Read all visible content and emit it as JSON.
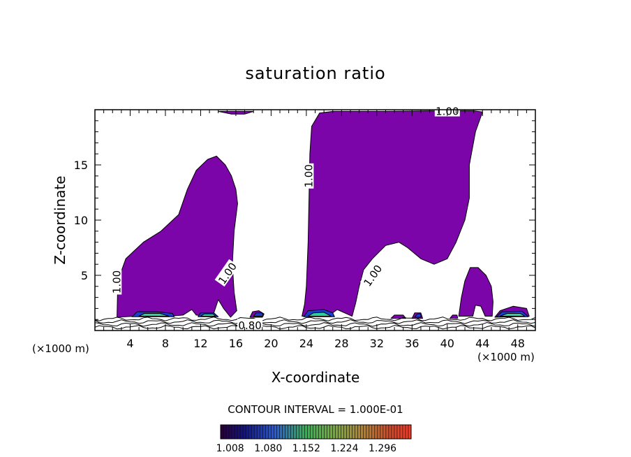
{
  "chart_data": {
    "type": "contour",
    "title": "saturation ratio",
    "xlabel": "X-coordinate",
    "ylabel": "Z-coordinate",
    "x_unit_left": "(×1000 m)",
    "x_unit_right": "(×1000 m)",
    "xlim": [
      0,
      50
    ],
    "ylim": [
      0,
      20
    ],
    "x_ticks": [
      4,
      8,
      12,
      16,
      20,
      24,
      28,
      32,
      36,
      40,
      44,
      48
    ],
    "y_ticks": [
      5,
      10,
      15
    ],
    "contour_interval_text": "CONTOUR INTERVAL = 1.000E-01",
    "colorbar_ticks": [
      "1.008",
      "1.080",
      "1.152",
      "1.224",
      "1.296"
    ],
    "colorbar_range": [
      0.99,
      1.35
    ],
    "contour_labels": [
      {
        "text": "1.00",
        "x": 40.0,
        "z": 19.9,
        "rotate": 0
      },
      {
        "text": "1.00",
        "x": 24.2,
        "z": 14.0,
        "rotate": -90
      },
      {
        "text": "1.00",
        "x": 2.4,
        "z": 4.4,
        "rotate": -90
      },
      {
        "text": "1.00",
        "x": 15.0,
        "z": 5.2,
        "rotate": -55
      },
      {
        "text": "1.00",
        "x": 31.5,
        "z": 5.0,
        "rotate": -55
      },
      {
        "text": "0.80",
        "x": 17.6,
        "z": 0.5,
        "rotate": 0
      }
    ],
    "regions": [
      {
        "name": "sat-region-left",
        "color": "#7b05a8",
        "pts": [
          [
            2.5,
            1.2
          ],
          [
            2.6,
            4.5
          ],
          [
            3.5,
            6.5
          ],
          [
            5.5,
            8.0
          ],
          [
            7.5,
            9.0
          ],
          [
            9.5,
            10.5
          ],
          [
            10.5,
            12.8
          ],
          [
            11.5,
            14.5
          ],
          [
            12.8,
            15.5
          ],
          [
            13.8,
            15.8
          ],
          [
            14.8,
            15.0
          ],
          [
            15.5,
            14.0
          ],
          [
            16.0,
            12.8
          ],
          [
            16.2,
            11.5
          ],
          [
            15.8,
            9.0
          ],
          [
            15.6,
            6.0
          ],
          [
            15.8,
            3.5
          ],
          [
            16.1,
            1.8
          ],
          [
            15.4,
            1.2
          ],
          [
            14.6,
            2.0
          ],
          [
            14.0,
            2.8
          ],
          [
            13.5,
            1.6
          ],
          [
            12.5,
            1.3
          ],
          [
            11.5,
            1.4
          ],
          [
            11.0,
            1.9
          ],
          [
            10.0,
            1.4
          ],
          [
            8.5,
            1.3
          ],
          [
            6.5,
            1.3
          ],
          [
            4.5,
            1.3
          ]
        ]
      },
      {
        "name": "sat-region-center",
        "color": "#7b05a8",
        "pts": [
          [
            23.5,
            1.3
          ],
          [
            23.8,
            2.4
          ],
          [
            24.0,
            4.0
          ],
          [
            24.2,
            8.0
          ],
          [
            24.3,
            12.0
          ],
          [
            24.4,
            16.0
          ],
          [
            24.6,
            18.5
          ],
          [
            25.5,
            19.7
          ],
          [
            27.0,
            19.85
          ],
          [
            33.0,
            19.85
          ],
          [
            38.0,
            19.9
          ],
          [
            43.0,
            19.9
          ],
          [
            44.0,
            19.8
          ],
          [
            43.2,
            18.0
          ],
          [
            42.5,
            15.0
          ],
          [
            42.5,
            12.0
          ],
          [
            42.0,
            10.0
          ],
          [
            41.0,
            8.0
          ],
          [
            40.0,
            6.5
          ],
          [
            38.5,
            6.0
          ],
          [
            37.0,
            6.5
          ],
          [
            35.5,
            7.5
          ],
          [
            34.5,
            8.0
          ],
          [
            33.0,
            7.7
          ],
          [
            31.5,
            6.5
          ],
          [
            30.5,
            5.5
          ],
          [
            30.0,
            4.0
          ],
          [
            29.6,
            2.5
          ],
          [
            29.2,
            1.3
          ],
          [
            27.5,
            1.9
          ],
          [
            26.5,
            1.3
          ],
          [
            25.0,
            1.3
          ]
        ]
      },
      {
        "name": "sat-region-right",
        "color": "#7b05a8",
        "pts": [
          [
            41.3,
            1.3
          ],
          [
            41.6,
            3.0
          ],
          [
            42.0,
            4.5
          ],
          [
            42.6,
            5.7
          ],
          [
            43.5,
            5.7
          ],
          [
            44.4,
            5.0
          ],
          [
            45.0,
            4.0
          ],
          [
            45.2,
            2.6
          ],
          [
            45.1,
            1.3
          ],
          [
            44.3,
            1.3
          ],
          [
            43.8,
            2.2
          ],
          [
            43.2,
            2.3
          ],
          [
            42.9,
            1.3
          ]
        ]
      },
      {
        "name": "sat-region-top",
        "color": "#7b05a8",
        "pts": [
          [
            14.0,
            19.85
          ],
          [
            15.5,
            19.6
          ],
          [
            17.0,
            19.6
          ],
          [
            18.0,
            19.85
          ]
        ]
      },
      {
        "name": "sat-patch-a",
        "color": "#7b05a8",
        "pts": [
          [
            17.6,
            1.2
          ],
          [
            17.9,
            1.7
          ],
          [
            18.6,
            1.8
          ],
          [
            19.2,
            1.5
          ],
          [
            19.0,
            1.2
          ]
        ]
      },
      {
        "name": "sat-patch-b",
        "color": "#7b05a8",
        "pts": [
          [
            33.6,
            1.1
          ],
          [
            34.0,
            1.4
          ],
          [
            35.0,
            1.4
          ],
          [
            35.3,
            1.1
          ]
        ]
      },
      {
        "name": "sat-patch-c",
        "color": "#7b05a8",
        "pts": [
          [
            36.0,
            1.1
          ],
          [
            36.3,
            1.6
          ],
          [
            37.0,
            1.6
          ],
          [
            37.2,
            1.1
          ]
        ]
      },
      {
        "name": "sat-patch-d",
        "color": "#7b05a8",
        "pts": [
          [
            40.3,
            1.1
          ],
          [
            40.6,
            1.4
          ],
          [
            41.1,
            1.4
          ],
          [
            41.2,
            1.1
          ]
        ]
      },
      {
        "name": "sat-patch-e",
        "color": "#7b05a8",
        "pts": [
          [
            45.4,
            1.2
          ],
          [
            46.0,
            1.8
          ],
          [
            47.5,
            2.2
          ],
          [
            49.0,
            2.0
          ],
          [
            49.3,
            1.3
          ]
        ]
      },
      {
        "name": "sat-high-1",
        "color": "#1a3fd0",
        "pts": [
          [
            4.2,
            1.25
          ],
          [
            4.8,
            1.7
          ],
          [
            7.0,
            1.7
          ],
          [
            8.8,
            1.55
          ],
          [
            9.0,
            1.25
          ]
        ]
      },
      {
        "name": "sat-high-2",
        "color": "#2fcfa0",
        "pts": [
          [
            5.0,
            1.3
          ],
          [
            5.6,
            1.55
          ],
          [
            7.4,
            1.55
          ],
          [
            8.4,
            1.3
          ]
        ]
      },
      {
        "name": "sat-high-3",
        "color": "#1a3fd0",
        "pts": [
          [
            11.7,
            1.25
          ],
          [
            12.0,
            1.6
          ],
          [
            13.5,
            1.6
          ],
          [
            14.0,
            1.25
          ]
        ]
      },
      {
        "name": "sat-high-4",
        "color": "#2fcfa0",
        "pts": [
          [
            12.0,
            1.3
          ],
          [
            12.4,
            1.5
          ],
          [
            13.4,
            1.5
          ],
          [
            13.7,
            1.3
          ]
        ]
      },
      {
        "name": "sat-high-5",
        "color": "#1a3fd0",
        "pts": [
          [
            23.7,
            1.25
          ],
          [
            24.2,
            1.8
          ],
          [
            26.0,
            1.9
          ],
          [
            27.0,
            1.6
          ],
          [
            27.2,
            1.25
          ]
        ]
      },
      {
        "name": "sat-high-6",
        "color": "#2fcfa0",
        "pts": [
          [
            24.2,
            1.3
          ],
          [
            24.8,
            1.6
          ],
          [
            26.0,
            1.65
          ],
          [
            26.8,
            1.3
          ]
        ]
      },
      {
        "name": "sat-high-7",
        "color": "#1a3fd0",
        "pts": [
          [
            45.6,
            1.25
          ],
          [
            46.2,
            1.7
          ],
          [
            48.5,
            1.75
          ],
          [
            49.2,
            1.25
          ]
        ]
      },
      {
        "name": "sat-high-8",
        "color": "#2fcfa0",
        "pts": [
          [
            46.0,
            1.3
          ],
          [
            46.8,
            1.55
          ],
          [
            48.3,
            1.55
          ],
          [
            48.8,
            1.3
          ]
        ]
      },
      {
        "name": "sat-high-9",
        "color": "#1a3fd0",
        "pts": [
          [
            18.0,
            1.3
          ],
          [
            18.3,
            1.6
          ],
          [
            19.0,
            1.6
          ],
          [
            19.1,
            1.3
          ]
        ]
      },
      {
        "name": "sat-high-10",
        "color": "#1a3fd0",
        "pts": [
          [
            36.3,
            1.2
          ],
          [
            36.6,
            1.5
          ],
          [
            37.0,
            1.5
          ],
          [
            37.0,
            1.2
          ]
        ]
      }
    ],
    "low_contour_levels_z": [
      0.3,
      0.55,
      0.8,
      1.05
    ]
  }
}
